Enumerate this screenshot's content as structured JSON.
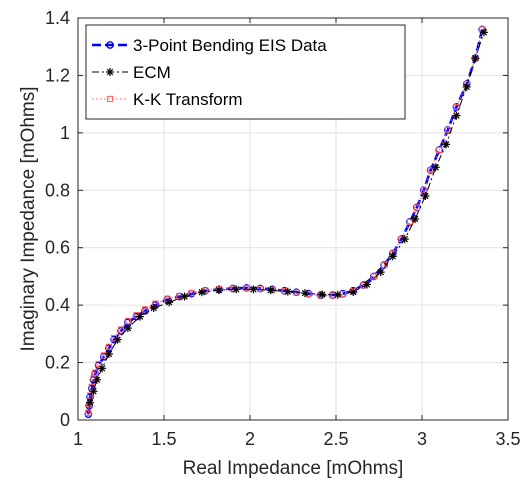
{
  "chart_data": {
    "type": "scatter",
    "xlabel": "Real Impedance [mOhms]",
    "ylabel": "Imaginary Impedance [mOhms]",
    "xlim": [
      1,
      3.5
    ],
    "ylim": [
      0,
      1.4
    ],
    "xticks": [
      1,
      1.5,
      2,
      2.5,
      3,
      3.5
    ],
    "xtick_labels": [
      "1",
      "1.5",
      "2",
      "2.5",
      "3",
      "3.5"
    ],
    "yticks": [
      0,
      0.2,
      0.4,
      0.6,
      0.8,
      1,
      1.2,
      1.4
    ],
    "ytick_labels": [
      "0",
      "0.2",
      "0.4",
      "0.6",
      "0.8",
      "1",
      "1.2",
      "1.4"
    ],
    "grid": true,
    "legend_position": "top-left",
    "series": [
      {
        "name": "3-Point Bending EIS Data",
        "color": "#0000ff",
        "line_style": "dashed",
        "marker": "circle",
        "x": [
          1.06,
          1.065,
          1.07,
          1.08,
          1.09,
          1.1,
          1.12,
          1.15,
          1.18,
          1.21,
          1.25,
          1.29,
          1.34,
          1.39,
          1.45,
          1.52,
          1.59,
          1.66,
          1.74,
          1.82,
          1.9,
          1.98,
          2.06,
          2.13,
          2.2,
          2.27,
          2.34,
          2.41,
          2.48,
          2.54,
          2.6,
          2.66,
          2.72,
          2.78,
          2.83,
          2.88,
          2.93,
          2.97,
          3.01,
          3.05,
          3.1,
          3.15,
          3.2,
          3.26,
          3.31,
          3.35
        ],
        "y": [
          0.02,
          0.05,
          0.08,
          0.11,
          0.14,
          0.16,
          0.19,
          0.22,
          0.25,
          0.28,
          0.31,
          0.34,
          0.36,
          0.38,
          0.4,
          0.42,
          0.43,
          0.44,
          0.45,
          0.455,
          0.458,
          0.46,
          0.458,
          0.455,
          0.45,
          0.445,
          0.44,
          0.435,
          0.435,
          0.44,
          0.45,
          0.47,
          0.5,
          0.54,
          0.58,
          0.63,
          0.69,
          0.74,
          0.8,
          0.87,
          0.94,
          1.01,
          1.09,
          1.17,
          1.26,
          1.36
        ]
      },
      {
        "name": "ECM",
        "color": "#000000",
        "line_style": "dashdot",
        "marker": "asterisk",
        "x": [
          1.07,
          1.09,
          1.11,
          1.14,
          1.18,
          1.23,
          1.29,
          1.36,
          1.44,
          1.53,
          1.62,
          1.72,
          1.82,
          1.92,
          2.02,
          2.12,
          2.22,
          2.32,
          2.42,
          2.51,
          2.6,
          2.68,
          2.76,
          2.83,
          2.9,
          2.96,
          3.02,
          3.08,
          3.14,
          3.2,
          3.26,
          3.31,
          3.36
        ],
        "y": [
          0.06,
          0.1,
          0.14,
          0.18,
          0.23,
          0.28,
          0.32,
          0.36,
          0.39,
          0.41,
          0.43,
          0.445,
          0.452,
          0.455,
          0.455,
          0.452,
          0.447,
          0.442,
          0.437,
          0.436,
          0.446,
          0.472,
          0.515,
          0.57,
          0.63,
          0.7,
          0.78,
          0.88,
          0.96,
          1.06,
          1.16,
          1.26,
          1.35
        ]
      },
      {
        "name": "K-K Transform",
        "color": "#ff6060",
        "line_style": "dotted",
        "marker": "square",
        "x": [
          1.06,
          1.065,
          1.07,
          1.08,
          1.09,
          1.1,
          1.12,
          1.15,
          1.18,
          1.21,
          1.25,
          1.29,
          1.34,
          1.39,
          1.45,
          1.52,
          1.59,
          1.66,
          1.74,
          1.82,
          1.9,
          1.98,
          2.06,
          2.13,
          2.2,
          2.27,
          2.34,
          2.41,
          2.48,
          2.54,
          2.6,
          2.66,
          2.72,
          2.78,
          2.83,
          2.88,
          2.93,
          2.97,
          3.01,
          3.05,
          3.1,
          3.15,
          3.2,
          3.26,
          3.31,
          3.35
        ],
        "y": [
          0.025,
          0.055,
          0.085,
          0.115,
          0.145,
          0.165,
          0.195,
          0.225,
          0.255,
          0.285,
          0.315,
          0.345,
          0.365,
          0.385,
          0.405,
          0.422,
          0.432,
          0.442,
          0.451,
          0.456,
          0.458,
          0.459,
          0.457,
          0.454,
          0.449,
          0.444,
          0.439,
          0.434,
          0.434,
          0.439,
          0.449,
          0.469,
          0.5,
          0.54,
          0.58,
          0.63,
          0.69,
          0.74,
          0.8,
          0.87,
          0.94,
          1.01,
          1.09,
          1.17,
          1.26,
          1.36
        ]
      }
    ]
  }
}
